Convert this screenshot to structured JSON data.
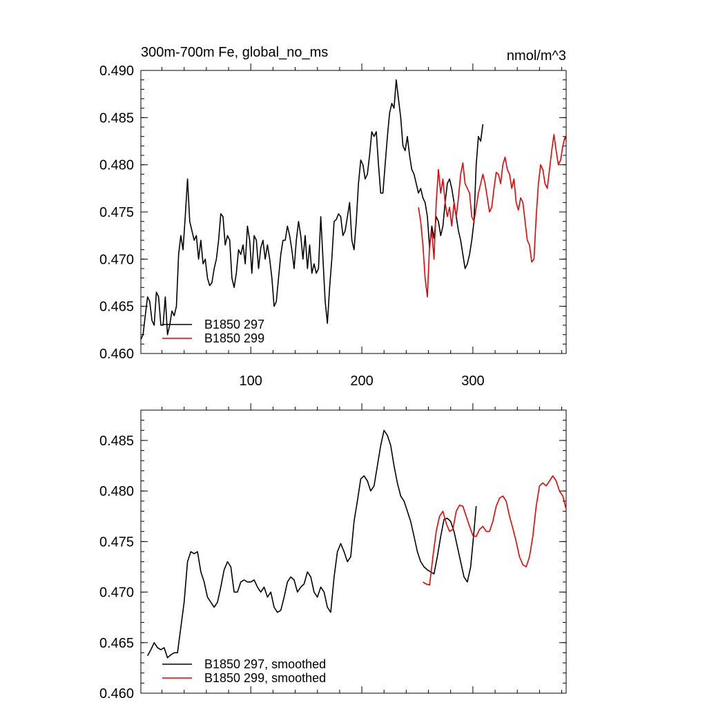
{
  "chart_data": [
    {
      "type": "line",
      "title": "300m-700m Fe, global_no_ms",
      "units": "nmol/m^3",
      "xlabel": "",
      "ylabel": "",
      "xlim": [
        1,
        384
      ],
      "ylim": [
        0.46,
        0.49
      ],
      "x_ticks": [
        100,
        200,
        300
      ],
      "x_tick_labels": [
        "100",
        "200",
        "300"
      ],
      "y_ticks": [
        0.46,
        0.465,
        0.47,
        0.475,
        0.48,
        0.485,
        0.49
      ],
      "y_tick_labels": [
        "0.460",
        "0.465",
        "0.470",
        "0.475",
        "0.480",
        "0.485",
        "0.490"
      ],
      "legend": "bottom-left",
      "series": [
        {
          "name": "B1850 297",
          "color": "#000000",
          "x": [
            1,
            3,
            5,
            7,
            9,
            11,
            13,
            15,
            17,
            19,
            21,
            23,
            25,
            27,
            29,
            31,
            33,
            35,
            37,
            39,
            41,
            43,
            45,
            47,
            49,
            51,
            53,
            55,
            57,
            59,
            61,
            63,
            65,
            67,
            69,
            71,
            73,
            75,
            77,
            79,
            81,
            83,
            85,
            87,
            89,
            91,
            93,
            95,
            97,
            99,
            101,
            103,
            105,
            107,
            109,
            111,
            113,
            115,
            117,
            119,
            121,
            123,
            125,
            127,
            129,
            131,
            133,
            135,
            137,
            139,
            141,
            143,
            145,
            147,
            149,
            151,
            153,
            155,
            157,
            159,
            161,
            163,
            165,
            167,
            169,
            171,
            173,
            175,
            177,
            179,
            181,
            183,
            185,
            187,
            189,
            191,
            193,
            195,
            197,
            199,
            201,
            203,
            205,
            207,
            209,
            211,
            213,
            215,
            217,
            219,
            221,
            223,
            225,
            227,
            229,
            231,
            233,
            235,
            237,
            239,
            241,
            243,
            245,
            247,
            249,
            251,
            253,
            255,
            257,
            259,
            261,
            263,
            265,
            267,
            269,
            271,
            273,
            275,
            277,
            279,
            281,
            283,
            285,
            287,
            289,
            291,
            293,
            295,
            297,
            299,
            301,
            303,
            305,
            307,
            309
          ],
          "values": [
            0.4615,
            0.462,
            0.464,
            0.466,
            0.4655,
            0.4635,
            0.463,
            0.4665,
            0.466,
            0.463,
            0.463,
            0.466,
            0.462,
            0.463,
            0.4645,
            0.464,
            0.465,
            0.4705,
            0.4725,
            0.471,
            0.4745,
            0.4785,
            0.474,
            0.473,
            0.472,
            0.4725,
            0.47,
            0.472,
            0.4695,
            0.47,
            0.468,
            0.4672,
            0.4675,
            0.469,
            0.47,
            0.472,
            0.4748,
            0.4745,
            0.4715,
            0.4725,
            0.472,
            0.468,
            0.467,
            0.4685,
            0.471,
            0.4705,
            0.4715,
            0.4695,
            0.4735,
            0.472,
            0.4685,
            0.4725,
            0.472,
            0.469,
            0.4712,
            0.472,
            0.47,
            0.4715,
            0.47,
            0.468,
            0.465,
            0.4655,
            0.468,
            0.4705,
            0.472,
            0.472,
            0.4735,
            0.4725,
            0.471,
            0.469,
            0.472,
            0.474,
            0.4725,
            0.47,
            0.4725,
            0.469,
            0.4715,
            0.4685,
            0.4695,
            0.4685,
            0.469,
            0.4745,
            0.47,
            0.4655,
            0.4632,
            0.467,
            0.47,
            0.474,
            0.4742,
            0.4748,
            0.4745,
            0.4725,
            0.473,
            0.4745,
            0.476,
            0.472,
            0.471,
            0.474,
            0.478,
            0.4805,
            0.48,
            0.4785,
            0.479,
            0.481,
            0.4835,
            0.483,
            0.4835,
            0.48,
            0.477,
            0.477,
            0.48,
            0.483,
            0.4855,
            0.4865,
            0.486,
            0.489,
            0.487,
            0.485,
            0.482,
            0.4815,
            0.483,
            0.481,
            0.4795,
            0.479,
            0.478,
            0.477,
            0.4775,
            0.4765,
            0.476,
            0.4745,
            0.4712,
            0.4735,
            0.4722,
            0.4745,
            0.474,
            0.4725,
            0.4735,
            0.476,
            0.478,
            0.4785,
            0.4775,
            0.476,
            0.4745,
            0.473,
            0.472,
            0.4705,
            0.469,
            0.4695,
            0.4705,
            0.472,
            0.474,
            0.48,
            0.483,
            0.4825,
            0.4843
          ]
        },
        {
          "name": "B1850 299",
          "color": "#e60000",
          "x": [
            251,
            253,
            255,
            257,
            259,
            261,
            263,
            265,
            267,
            269,
            271,
            273,
            275,
            277,
            279,
            281,
            283,
            285,
            287,
            289,
            291,
            293,
            295,
            297,
            299,
            301,
            303,
            305,
            307,
            309,
            311,
            313,
            315,
            317,
            319,
            321,
            323,
            325,
            327,
            329,
            331,
            333,
            335,
            337,
            339,
            341,
            343,
            345,
            347,
            349,
            351,
            353,
            355,
            357,
            359,
            361,
            363,
            365,
            367,
            369,
            371,
            373,
            375,
            377,
            379,
            381,
            383,
            384
          ],
          "values": [
            0.4755,
            0.474,
            0.4715,
            0.468,
            0.466,
            0.4715,
            0.473,
            0.47,
            0.476,
            0.4795,
            0.477,
            0.4785,
            0.476,
            0.4745,
            0.4755,
            0.4735,
            0.476,
            0.4745,
            0.4765,
            0.479,
            0.4802,
            0.478,
            0.4775,
            0.477,
            0.4745,
            0.474,
            0.4755,
            0.477,
            0.478,
            0.479,
            0.478,
            0.4765,
            0.475,
            0.4755,
            0.4775,
            0.4792,
            0.479,
            0.478,
            0.48,
            0.4808,
            0.4795,
            0.479,
            0.4775,
            0.4785,
            0.476,
            0.4752,
            0.4765,
            0.476,
            0.474,
            0.472,
            0.4715,
            0.4697,
            0.47,
            0.4745,
            0.478,
            0.48,
            0.4795,
            0.478,
            0.4775,
            0.4795,
            0.4815,
            0.4832,
            0.4815,
            0.48,
            0.4805,
            0.482,
            0.483,
            0.4825
          ]
        }
      ]
    },
    {
      "type": "line",
      "title": "",
      "xlabel": "",
      "ylabel": "",
      "xlim": [
        1,
        384
      ],
      "ylim": [
        0.46,
        0.488
      ],
      "x_ticks": [
        100,
        200,
        300
      ],
      "x_tick_labels": [],
      "y_ticks": [
        0.46,
        0.465,
        0.47,
        0.475,
        0.48,
        0.485
      ],
      "y_tick_labels": [
        "0.460",
        "0.465",
        "0.470",
        "0.475",
        "0.480",
        "0.485"
      ],
      "legend": "bottom-left",
      "series": [
        {
          "name": "B1850 297, smoothed",
          "color": "#000000",
          "x": [
            7,
            10,
            13,
            16,
            19,
            22,
            25,
            28,
            31,
            34,
            37,
            40,
            43,
            46,
            49,
            52,
            55,
            58,
            61,
            64,
            67,
            70,
            73,
            76,
            79,
            82,
            85,
            88,
            91,
            94,
            97,
            100,
            103,
            106,
            109,
            112,
            115,
            118,
            121,
            124,
            127,
            130,
            133,
            136,
            139,
            142,
            145,
            148,
            151,
            154,
            157,
            160,
            163,
            166,
            169,
            172,
            175,
            178,
            181,
            184,
            187,
            190,
            193,
            196,
            199,
            202,
            205,
            208,
            211,
            214,
            217,
            220,
            223,
            226,
            229,
            232,
            235,
            238,
            241,
            244,
            247,
            250,
            253,
            256,
            259,
            262,
            265,
            268,
            271,
            274,
            277,
            280,
            283,
            286,
            289,
            292,
            295,
            298,
            301,
            303
          ],
          "values": [
            0.4637,
            0.4643,
            0.465,
            0.4645,
            0.4643,
            0.4645,
            0.4635,
            0.4638,
            0.464,
            0.464,
            0.4665,
            0.469,
            0.473,
            0.474,
            0.4738,
            0.474,
            0.472,
            0.471,
            0.4695,
            0.469,
            0.4685,
            0.469,
            0.4705,
            0.4722,
            0.473,
            0.4725,
            0.47,
            0.47,
            0.471,
            0.4712,
            0.471,
            0.471,
            0.4712,
            0.4705,
            0.47,
            0.4705,
            0.4695,
            0.47,
            0.4685,
            0.468,
            0.4682,
            0.4695,
            0.471,
            0.4715,
            0.4712,
            0.47,
            0.4705,
            0.4708,
            0.472,
            0.4715,
            0.47,
            0.4695,
            0.4705,
            0.47,
            0.4685,
            0.468,
            0.4715,
            0.474,
            0.4748,
            0.474,
            0.473,
            0.4735,
            0.477,
            0.479,
            0.4812,
            0.4815,
            0.481,
            0.48,
            0.4805,
            0.4825,
            0.4845,
            0.486,
            0.4855,
            0.4845,
            0.4825,
            0.4808,
            0.4795,
            0.479,
            0.478,
            0.477,
            0.4755,
            0.474,
            0.473,
            0.4725,
            0.4722,
            0.472,
            0.4718,
            0.4735,
            0.4755,
            0.4772,
            0.4773,
            0.477,
            0.476,
            0.4745,
            0.473,
            0.4715,
            0.471,
            0.4725,
            0.476,
            0.4785
          ]
        },
        {
          "name": "B1850 299, smoothed",
          "color": "#e60000",
          "x": [
            255,
            258,
            261,
            264,
            267,
            270,
            273,
            276,
            279,
            282,
            285,
            288,
            291,
            294,
            297,
            300,
            303,
            306,
            309,
            312,
            315,
            318,
            321,
            324,
            327,
            330,
            333,
            336,
            339,
            342,
            345,
            348,
            351,
            354,
            357,
            360,
            363,
            366,
            369,
            372,
            375,
            378,
            381,
            384
          ],
          "values": [
            0.471,
            0.4708,
            0.4707,
            0.4735,
            0.476,
            0.4775,
            0.478,
            0.4768,
            0.476,
            0.4762,
            0.478,
            0.4786,
            0.4785,
            0.4775,
            0.4765,
            0.4756,
            0.4755,
            0.4762,
            0.4765,
            0.476,
            0.476,
            0.477,
            0.4785,
            0.4793,
            0.4795,
            0.479,
            0.4775,
            0.4763,
            0.475,
            0.4735,
            0.4727,
            0.4725,
            0.4735,
            0.4755,
            0.4785,
            0.4805,
            0.4808,
            0.4805,
            0.481,
            0.4815,
            0.481,
            0.48,
            0.4795,
            0.4782
          ]
        }
      ]
    }
  ]
}
